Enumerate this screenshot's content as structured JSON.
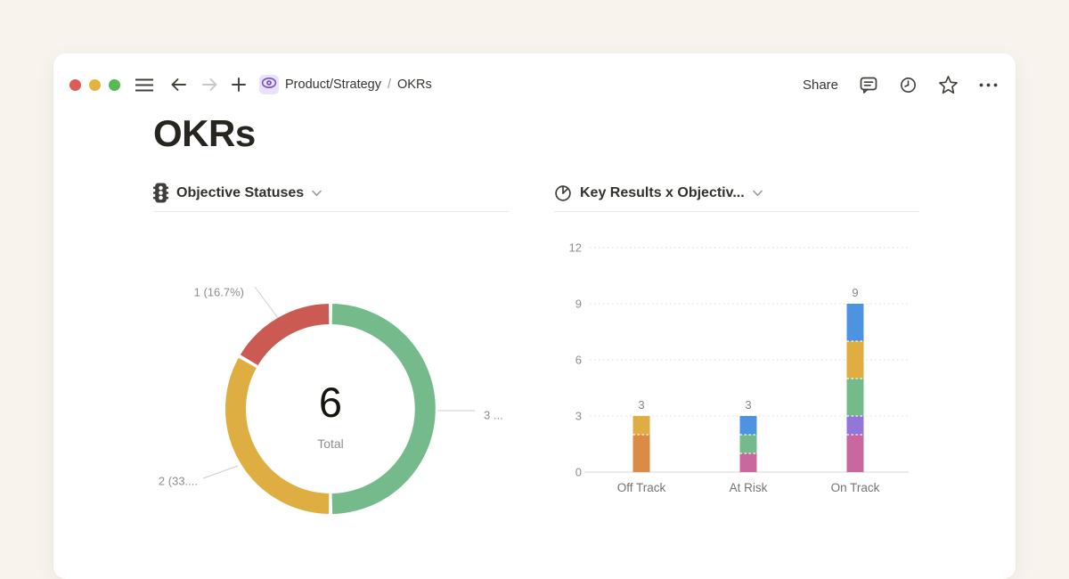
{
  "window": {
    "controls": [
      {
        "name": "close",
        "color": "#da5e56"
      },
      {
        "name": "minimize",
        "color": "#e3b33e"
      },
      {
        "name": "zoom",
        "color": "#57ba52"
      }
    ],
    "breadcrumb": {
      "parent": "Product/Strategy",
      "separator": "/",
      "current": "OKRs"
    },
    "share_label": "Share"
  },
  "page": {
    "title": "OKRs"
  },
  "modules": {
    "donut": {
      "title": "Objective Statuses"
    },
    "bar": {
      "title": "Key Results x Objectiv..."
    }
  },
  "chart_data": [
    {
      "type": "pie",
      "donut": true,
      "title": "Objective Statuses",
      "total_value": "6",
      "total_label": "Total",
      "start_angle_deg": 0,
      "direction": "clockwise",
      "segments": [
        {
          "name": "green",
          "value": 3,
          "pct": 50.0,
          "label": "3 ...",
          "color": "#74ba8b"
        },
        {
          "name": "yellow",
          "value": 2,
          "pct": 33.3,
          "label": "2 (33....",
          "color": "#dfae43"
        },
        {
          "name": "red",
          "value": 1,
          "pct": 16.7,
          "label": "1 (16.7%)",
          "color": "#cb5a53"
        }
      ]
    },
    {
      "type": "bar",
      "stacked": true,
      "title": "Key Results x Objectiv...",
      "categories": [
        "Off Track",
        "At Risk",
        "On Track"
      ],
      "totals": [
        3,
        3,
        9
      ],
      "y_ticks": [
        0,
        3,
        6,
        9,
        12
      ],
      "ylim": [
        0,
        12
      ],
      "grid": "dotted-horizontal",
      "legend": "none",
      "stacks": [
        [
          {
            "name": "orange",
            "value": 2,
            "color": "#dc8b46"
          },
          {
            "name": "yellow",
            "value": 1,
            "color": "#dfae43"
          }
        ],
        [
          {
            "name": "pink",
            "value": 1,
            "color": "#c9689e"
          },
          {
            "name": "green",
            "value": 1,
            "color": "#74ba8b"
          },
          {
            "name": "blue",
            "value": 1,
            "color": "#4e93e2"
          }
        ],
        [
          {
            "name": "pink",
            "value": 2,
            "color": "#c9689e"
          },
          {
            "name": "purple",
            "value": 1,
            "color": "#9377d8"
          },
          {
            "name": "green",
            "value": 2,
            "color": "#74ba8b"
          },
          {
            "name": "yellow",
            "value": 2,
            "color": "#dfae43"
          },
          {
            "name": "blue",
            "value": 2,
            "color": "#4e93e2"
          }
        ]
      ]
    }
  ],
  "chart_text_colors": {
    "tick": "#8f8e8b",
    "value_label": "#85837f",
    "category_label": "#75736e",
    "donut_label": "#8f8e8b"
  }
}
